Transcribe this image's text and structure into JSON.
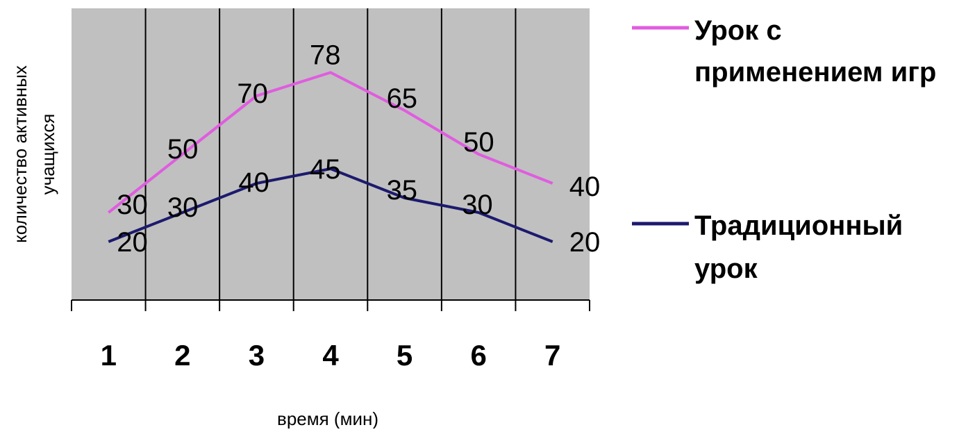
{
  "chart_data": {
    "type": "line",
    "x": [
      "1",
      "2",
      "3",
      "4",
      "5",
      "6",
      "7"
    ],
    "xlabel": "время (мин)",
    "ylabel_lines": [
      "количество активных",
      "учащихся"
    ],
    "ylim": [
      0,
      100
    ],
    "grid": "vertical",
    "legend_position": "right",
    "plot_background": "#c0c0c0",
    "series": [
      {
        "name_lines": [
          "Урок с",
          "применением игр"
        ],
        "values": [
          30,
          50,
          70,
          78,
          65,
          50,
          40
        ],
        "labels": [
          "30",
          "50",
          "70",
          "78",
          "65",
          "50",
          "40"
        ],
        "color": "#e05ce0"
      },
      {
        "name_lines": [
          "Традиционный",
          "урок"
        ],
        "values": [
          20,
          30,
          40,
          45,
          35,
          30,
          20
        ],
        "labels": [
          "20",
          "30",
          "40",
          "45",
          "35",
          "30",
          "20"
        ],
        "color": "#1c1a6e"
      }
    ]
  }
}
